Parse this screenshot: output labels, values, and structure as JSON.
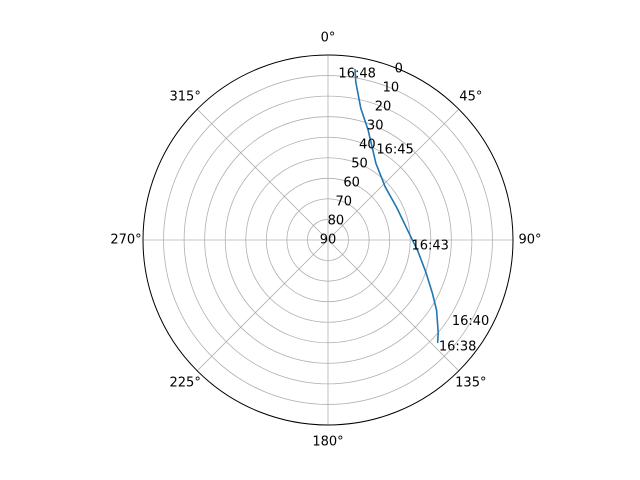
{
  "chart_data": {
    "type": "polar-line",
    "theta_zero": "N",
    "theta_direction": "clockwise",
    "r_range": [
      90,
      0
    ],
    "r_ticks": [
      "0",
      "10",
      "20",
      "30",
      "40",
      "50",
      "60",
      "70",
      "80",
      "90"
    ],
    "theta_ticks": [
      {
        "deg": 0,
        "label": "0°"
      },
      {
        "deg": 45,
        "label": "45°"
      },
      {
        "deg": 90,
        "label": "90°"
      },
      {
        "deg": 135,
        "label": "135°"
      },
      {
        "deg": 180,
        "label": "180°"
      },
      {
        "deg": 225,
        "label": "225°"
      },
      {
        "deg": 270,
        "label": "270°"
      },
      {
        "deg": 315,
        "label": "315°"
      }
    ],
    "grid": true,
    "series": [
      {
        "color": "#1f77b4",
        "points": [
          {
            "az": 133,
            "el": 17
          },
          {
            "az": 130,
            "el": 20
          },
          {
            "az": 123,
            "el": 27
          },
          {
            "az": 117,
            "el": 33
          },
          {
            "az": 108,
            "el": 40
          },
          {
            "az": 97,
            "el": 46
          },
          {
            "az": 83,
            "el": 51
          },
          {
            "az": 65,
            "el": 53
          },
          {
            "az": 47,
            "el": 52
          },
          {
            "az": 32,
            "el": 46
          },
          {
            "az": 20,
            "el": 33
          },
          {
            "az": 14,
            "el": 24
          },
          {
            "az": 10,
            "el": 12
          },
          {
            "az": 9,
            "el": 6
          }
        ]
      }
    ],
    "annotations": [
      {
        "text": "16:38",
        "az": 134,
        "el": 15
      },
      {
        "text": "16:40",
        "az": 123.3,
        "el": 17.9
      },
      {
        "text": "16:43",
        "az": 94.1,
        "el": 49.3
      },
      {
        "text": "16:45",
        "az": 28.3,
        "el": 40.4
      },
      {
        "text": "16:48",
        "az": 3.6,
        "el": 9.2
      }
    ]
  }
}
